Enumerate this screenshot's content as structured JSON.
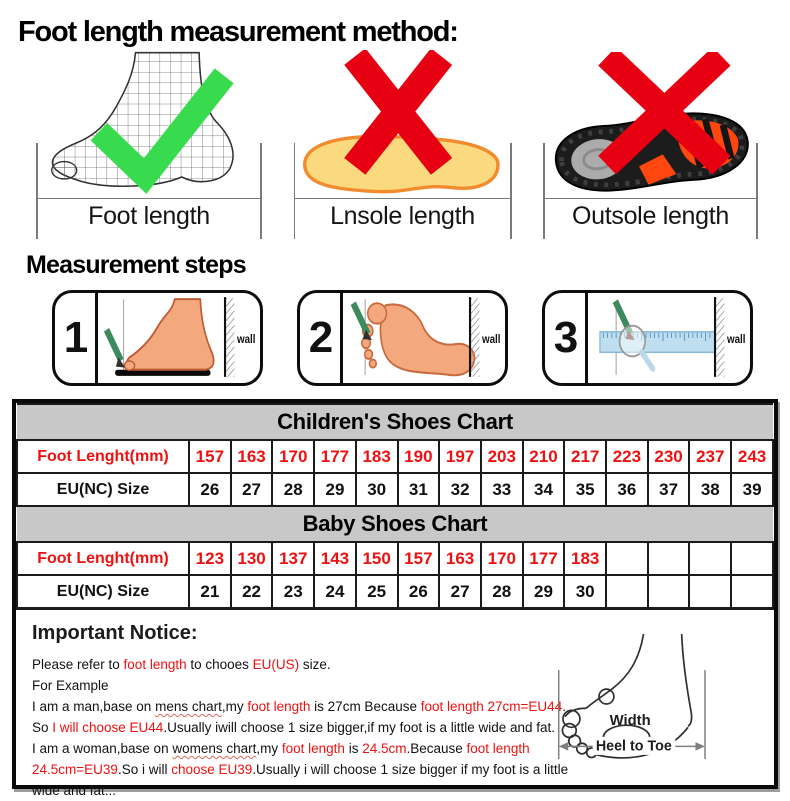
{
  "page": {
    "title": "Foot length measurement method:",
    "steps_heading": "Measurement steps"
  },
  "figures": [
    {
      "label": "Foot length",
      "verdict": "correct",
      "icon": "mesh-foot-with-green-check"
    },
    {
      "label": "Lnsole length",
      "verdict": "wrong",
      "icon": "insole-with-red-cross"
    },
    {
      "label": "Outsole length",
      "verdict": "wrong",
      "icon": "shoe-outsole-with-red-cross"
    }
  ],
  "steps": [
    {
      "number": "1",
      "wall_label": "wall",
      "illustration": "foot-side-view-pencil-wall"
    },
    {
      "number": "2",
      "wall_label": "wall",
      "illustration": "footprint-top-view-pencil-wall"
    },
    {
      "number": "3",
      "wall_label": "wall",
      "illustration": "ruler-magnifier-wall"
    }
  ],
  "size_charts": {
    "children": {
      "title": "Children's Shoes Chart",
      "rows": [
        {
          "label": "Foot Lenght(mm)",
          "style": "red",
          "values": [
            "157",
            "163",
            "170",
            "177",
            "183",
            "190",
            "197",
            "203",
            "210",
            "217",
            "223",
            "230",
            "237",
            "243"
          ]
        },
        {
          "label": "EU(NC) Size",
          "style": "black",
          "values": [
            "26",
            "27",
            "28",
            "29",
            "30",
            "31",
            "32",
            "33",
            "34",
            "35",
            "36",
            "37",
            "38",
            "39"
          ]
        }
      ]
    },
    "baby": {
      "title": "Baby Shoes Chart",
      "rows": [
        {
          "label": "Foot Lenght(mm)",
          "style": "red",
          "values": [
            "123",
            "130",
            "137",
            "143",
            "150",
            "157",
            "163",
            "170",
            "177",
            "183",
            "",
            "",
            "",
            ""
          ]
        },
        {
          "label": "EU(NC) Size",
          "style": "black",
          "values": [
            "21",
            "22",
            "23",
            "24",
            "25",
            "26",
            "27",
            "28",
            "29",
            "30",
            "",
            "",
            "",
            ""
          ]
        }
      ]
    }
  },
  "notice": {
    "heading": "Important Notice:",
    "lines": [
      [
        {
          "t": "Please refer to "
        },
        {
          "t": "foot length",
          "red": true
        },
        {
          "t": " to chooes "
        },
        {
          "t": "EU(US)",
          "red": true
        },
        {
          "t": " size."
        }
      ],
      [
        {
          "t": "For Example"
        }
      ],
      [
        {
          "t": "I am a man,base on "
        },
        {
          "t": "mens chart",
          "u": true
        },
        {
          "t": ",my "
        },
        {
          "t": "foot length",
          "red": true
        },
        {
          "t": " is 27cm Because "
        },
        {
          "t": "foot length 27cm=EU44",
          "red": true
        },
        {
          "t": "."
        }
      ],
      [
        {
          "t": "So "
        },
        {
          "t": "I will choose EU44",
          "red": true
        },
        {
          "t": ".Usually iwill choose 1 size bigger,if my foot is a little wide and fat."
        }
      ],
      [
        {
          "t": "I am a woman,base on "
        },
        {
          "t": "womens chart",
          "u": true
        },
        {
          "t": ",my "
        },
        {
          "t": "foot length",
          "red": true
        },
        {
          "t": " is "
        },
        {
          "t": "24.5cm",
          "red": true
        },
        {
          "t": ".Because "
        },
        {
          "t": "foot length",
          "red": true
        }
      ],
      [
        {
          "t": "24.5cm=EU39",
          "red": true
        },
        {
          "t": ".So i will "
        },
        {
          "t": "choose EU39",
          "red": true
        },
        {
          "t": ".Usually i will choose 1 size bigger if my foot is a little"
        }
      ],
      [
        {
          "t": "wide and fat..."
        }
      ]
    ],
    "foot_diagram": {
      "width_label": "Width",
      "length_label": "Heel to Toe"
    }
  },
  "colors": {
    "cross_red": "#e60012",
    "check_green": "#38da4e",
    "table_red_text": "#ee1111",
    "table_header_gray": "#c8c8c8",
    "insole_yellow": "#fbd97e",
    "insole_orange_edge": "#f28a2e",
    "skin_tone": "#f3a87e",
    "pencil_green": "#3c8a5e",
    "ruler_blue": "#bfdeef"
  }
}
